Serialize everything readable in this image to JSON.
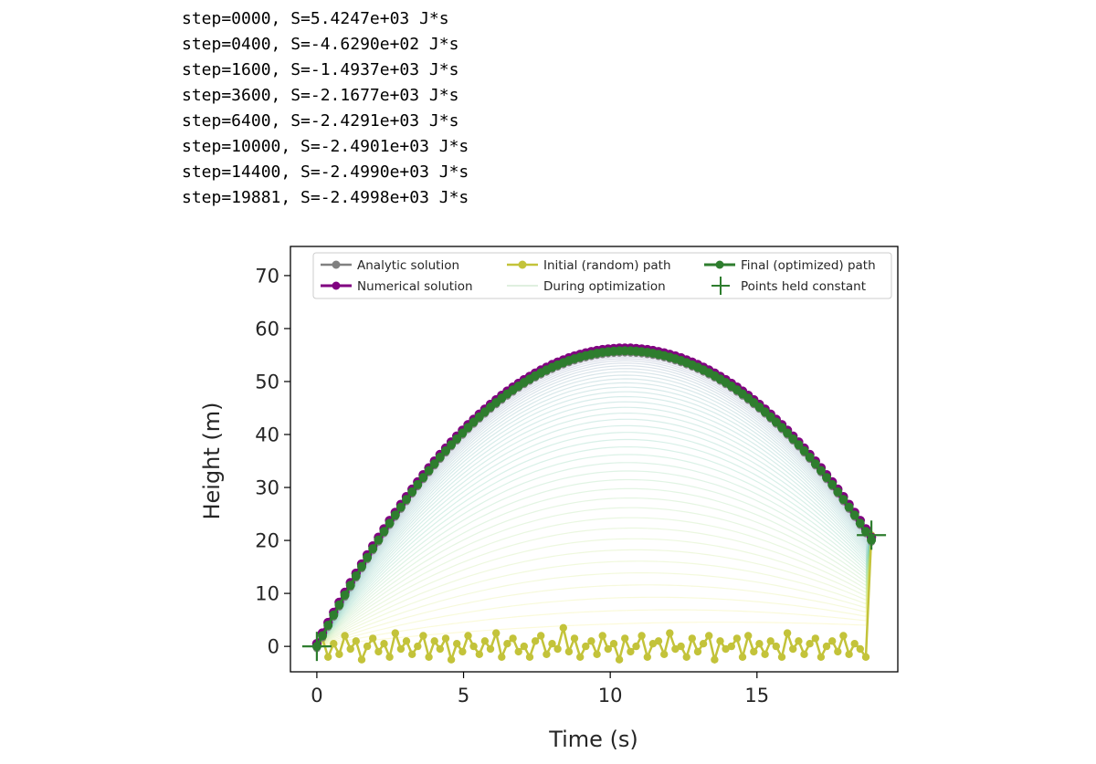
{
  "log_lines": [
    "step=0000, S=5.4247e+03 J*s",
    "step=0400, S=-4.6290e+02 J*s",
    "step=1600, S=-1.4937e+03 J*s",
    "step=3600, S=-2.1677e+03 J*s",
    "step=6400, S=-2.4291e+03 J*s",
    "step=10000, S=-2.4901e+03 J*s",
    "step=14400, S=-2.4990e+03 J*s",
    "step=19881, S=-2.4998e+03 J*s"
  ],
  "chart_data": {
    "type": "line",
    "xlabel": "Time (s)",
    "ylabel": "Height (m)",
    "xlim": [
      -0.9,
      19.8
    ],
    "ylim": [
      -4.8,
      75.5
    ],
    "xticks": [
      0,
      5,
      10,
      15
    ],
    "yticks": [
      0,
      10,
      20,
      30,
      40,
      50,
      60,
      70
    ],
    "grid": false,
    "legend_position": "top",
    "colors": {
      "analytic": "#808080",
      "numerical": "#800080",
      "initial": "#c3c33a",
      "final": "#2e7d2e",
      "held": "#2e7d2e"
    },
    "trajectory_model": {
      "t_start": 0,
      "t_end": 18.9,
      "y_start": 0,
      "y_end": 21,
      "peak_time": 10.5,
      "peak_height": 55.8,
      "num_points": 100
    },
    "initial_path_noise": [
      -1,
      1.5,
      -2,
      0.5,
      -1.5,
      2,
      -0.5,
      1,
      -2.5,
      0,
      1.5,
      -1,
      0.5,
      -2,
      2.5,
      -0.5,
      1,
      -1.5,
      0,
      2,
      -2,
      1,
      -0.5,
      1.5,
      -2.5,
      0.5,
      -1,
      2,
      0,
      -1.5,
      1,
      -0.5,
      2.5,
      -2,
      0.5,
      1.5,
      -1,
      0,
      -2,
      1,
      2,
      -1.5,
      0.5,
      -0.5,
      3.5,
      -1,
      1.5,
      -2,
      0,
      1,
      -1.5,
      2,
      -0.5,
      0.5,
      -2.5,
      1.5,
      -1,
      0,
      2,
      -2,
      0.5,
      1,
      -1.5,
      2.5,
      -0.5,
      0,
      -2,
      1.5,
      -1,
      0.5,
      2,
      -2.5,
      1,
      -0.5,
      0,
      1.5,
      -2,
      2,
      -1,
      0.5,
      -1.5,
      1,
      0,
      -2,
      2.5,
      -0.5,
      1,
      -1.5,
      0.5,
      1.5,
      -2,
      0,
      1,
      -1,
      2,
      -1.5,
      0.5,
      -0.5,
      1,
      -2
    ],
    "series": [
      {
        "name": "Analytic solution",
        "marker": "circle"
      },
      {
        "name": "Numerical solution",
        "marker": "circle"
      },
      {
        "name": "Initial (random) path",
        "marker": "circle"
      },
      {
        "name": "During optimization",
        "marker": "none"
      },
      {
        "name": "Final (optimized) path",
        "marker": "circle"
      },
      {
        "name": "Points held constant",
        "marker": "plus"
      }
    ]
  }
}
